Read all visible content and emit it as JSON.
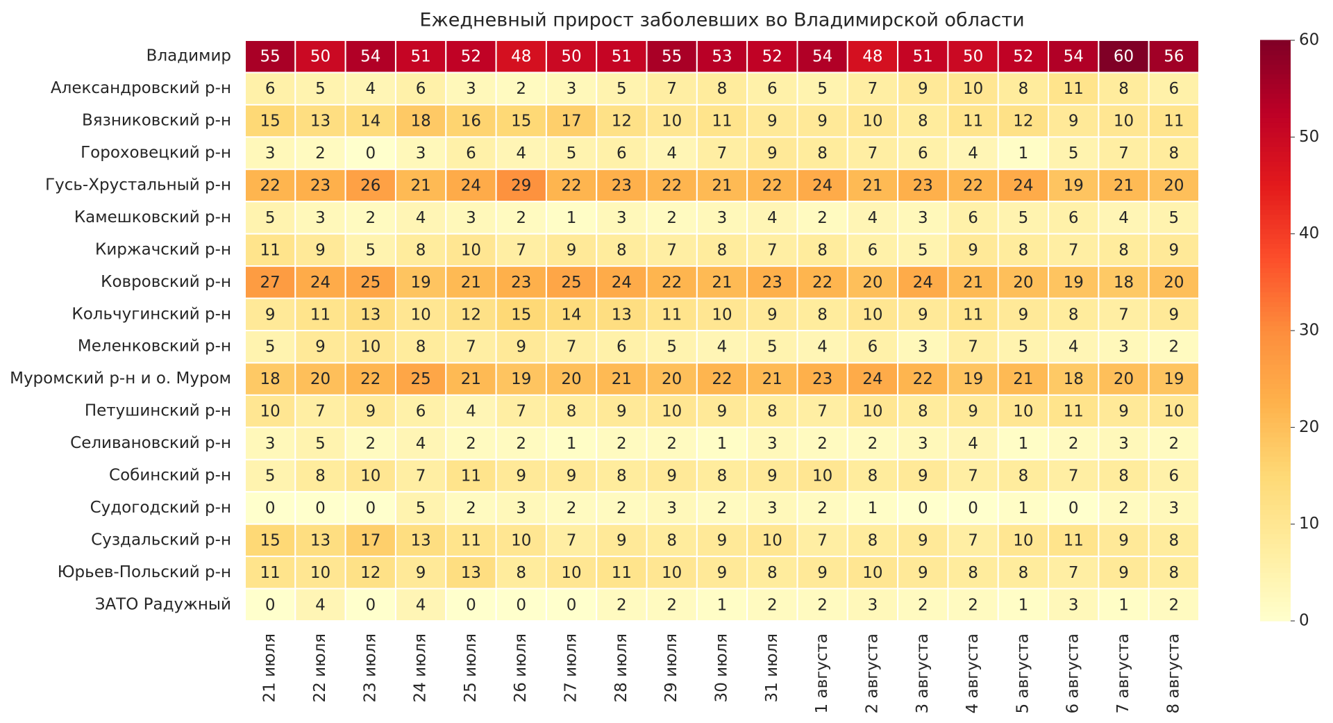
{
  "chart_data": {
    "type": "heatmap",
    "title": "Ежедневный прирост заболевших во Владимирской области",
    "x_categories": [
      "21 июля",
      "22 июля",
      "23 июля",
      "24 июля",
      "25 июля",
      "26 июля",
      "27 июля",
      "28 июля",
      "29 июля",
      "30 июля",
      "31 июля",
      "1 августа",
      "2 августа",
      "3 августа",
      "4 августа",
      "5 августа",
      "6 августа",
      "7 августа",
      "8 августа"
    ],
    "y_categories": [
      "Владимир",
      "Александровский р-н",
      "Вязниковский р-н",
      "Гороховецкий р-н",
      "Гусь-Хрустальный р-н",
      "Камешковский р-н",
      "Киржачский р-н",
      "Ковровский р-н",
      "Кольчугинский р-н",
      "Меленковский р-н",
      "Муромский р-н и о. Муром",
      "Петушинский р-н",
      "Селивановский р-н",
      "Собинский р-н",
      "Судогодский р-н",
      "Суздальский р-н",
      "Юрьев-Польский р-н",
      "ЗАТО Радужный"
    ],
    "values": [
      [
        55,
        50,
        54,
        51,
        52,
        48,
        50,
        51,
        55,
        53,
        52,
        54,
        48,
        51,
        50,
        52,
        54,
        60,
        56
      ],
      [
        6,
        5,
        4,
        6,
        3,
        2,
        3,
        5,
        7,
        8,
        6,
        5,
        7,
        9,
        10,
        8,
        11,
        8,
        6
      ],
      [
        15,
        13,
        14,
        18,
        16,
        15,
        17,
        12,
        10,
        11,
        9,
        9,
        10,
        8,
        11,
        12,
        9,
        10,
        11
      ],
      [
        3,
        2,
        0,
        3,
        6,
        4,
        5,
        6,
        4,
        7,
        9,
        8,
        7,
        6,
        4,
        1,
        5,
        7,
        8
      ],
      [
        22,
        23,
        26,
        21,
        24,
        29,
        22,
        23,
        22,
        21,
        22,
        24,
        21,
        23,
        22,
        24,
        19,
        21,
        20
      ],
      [
        5,
        3,
        2,
        4,
        3,
        2,
        1,
        3,
        2,
        3,
        4,
        2,
        4,
        3,
        6,
        5,
        6,
        4,
        5
      ],
      [
        11,
        9,
        5,
        8,
        10,
        7,
        9,
        8,
        7,
        8,
        7,
        8,
        6,
        5,
        9,
        8,
        7,
        8,
        9
      ],
      [
        27,
        24,
        25,
        19,
        21,
        23,
        25,
        24,
        22,
        21,
        23,
        22,
        20,
        24,
        21,
        20,
        19,
        18,
        20
      ],
      [
        9,
        11,
        13,
        10,
        12,
        15,
        14,
        13,
        11,
        10,
        9,
        8,
        10,
        9,
        11,
        9,
        8,
        7,
        9
      ],
      [
        5,
        9,
        10,
        8,
        7,
        9,
        7,
        6,
        5,
        4,
        5,
        4,
        6,
        3,
        7,
        5,
        4,
        3,
        2
      ],
      [
        18,
        20,
        22,
        25,
        21,
        19,
        20,
        21,
        20,
        22,
        21,
        23,
        24,
        22,
        19,
        21,
        18,
        20,
        19
      ],
      [
        10,
        7,
        9,
        6,
        4,
        7,
        8,
        9,
        10,
        9,
        8,
        7,
        10,
        8,
        9,
        10,
        11,
        9,
        10
      ],
      [
        3,
        5,
        2,
        4,
        2,
        2,
        1,
        2,
        2,
        1,
        3,
        2,
        2,
        3,
        4,
        1,
        2,
        3,
        2
      ],
      [
        5,
        8,
        10,
        7,
        11,
        9,
        9,
        8,
        9,
        8,
        9,
        10,
        8,
        9,
        7,
        8,
        7,
        8,
        6
      ],
      [
        0,
        0,
        0,
        5,
        2,
        3,
        2,
        2,
        3,
        2,
        3,
        2,
        1,
        0,
        0,
        1,
        0,
        2,
        3
      ],
      [
        15,
        13,
        17,
        13,
        11,
        10,
        7,
        9,
        8,
        9,
        10,
        7,
        8,
        9,
        7,
        10,
        11,
        9,
        8
      ],
      [
        11,
        10,
        12,
        9,
        13,
        8,
        10,
        11,
        10,
        9,
        8,
        9,
        10,
        9,
        8,
        8,
        7,
        9,
        8
      ],
      [
        0,
        4,
        0,
        4,
        0,
        0,
        0,
        2,
        2,
        1,
        2,
        2,
        3,
        2,
        2,
        1,
        3,
        1,
        2
      ]
    ],
    "clim": [
      0,
      60
    ],
    "cticks": [
      0,
      10,
      20,
      30,
      40,
      50,
      60
    ],
    "colormap": [
      "#ffffcc",
      "#ffeda0",
      "#fed976",
      "#feb24c",
      "#fd8d3c",
      "#fc4e2a",
      "#e31a1c",
      "#bd0026",
      "#800026"
    ]
  }
}
